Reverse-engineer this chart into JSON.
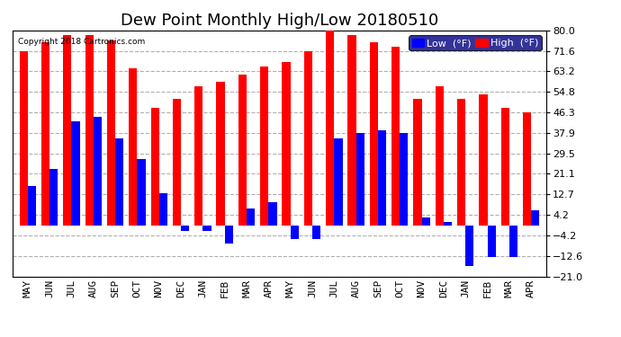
{
  "title": "Dew Point Monthly High/Low 20180510",
  "copyright": "Copyright 2018 Cartronics.com",
  "categories": [
    "MAY",
    "JUN",
    "JUL",
    "AUG",
    "SEP",
    "OCT",
    "NOV",
    "DEC",
    "JAN",
    "FEB",
    "MAR",
    "APR",
    "MAY",
    "JUN",
    "JUL",
    "AUG",
    "SEP",
    "OCT",
    "NOV",
    "DEC",
    "JAN",
    "FEB",
    "MAR",
    "APR"
  ],
  "high": [
    71.6,
    75.2,
    78.0,
    78.0,
    76.0,
    64.4,
    48.2,
    51.8,
    57.2,
    59.0,
    61.7,
    65.3,
    67.0,
    71.6,
    80.0,
    78.0,
    75.2,
    73.4,
    51.8,
    57.2,
    51.8,
    53.6,
    48.2,
    46.3
  ],
  "low": [
    16.0,
    23.0,
    42.8,
    44.6,
    35.6,
    27.0,
    13.0,
    -2.2,
    -2.2,
    -7.6,
    7.0,
    9.5,
    -5.8,
    -5.8,
    35.6,
    37.9,
    39.0,
    37.9,
    3.2,
    1.4,
    -16.6,
    -13.0,
    -13.0,
    6.0
  ],
  "high_color": "#ff0000",
  "low_color": "#0000ff",
  "bg_color": "#ffffff",
  "grid_color": "#b0b0b0",
  "yticks": [
    -21.0,
    -12.6,
    -4.2,
    4.2,
    12.7,
    21.1,
    29.5,
    37.9,
    46.3,
    54.8,
    63.2,
    71.6,
    80.0
  ],
  "ymin": -21.0,
  "ymax": 80.0,
  "bar_width": 0.38,
  "title_fontsize": 13,
  "tick_fontsize": 8,
  "legend_fontsize": 8
}
